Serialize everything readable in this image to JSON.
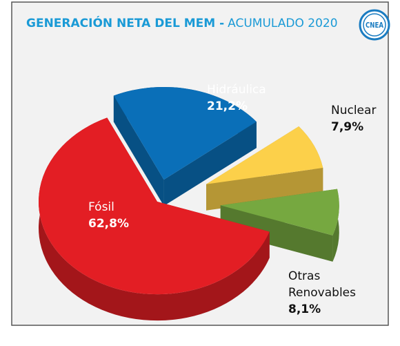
{
  "chart_data": {
    "type": "pie",
    "title": "GENERACIÓN NETA DEL MEM -",
    "subtitle": "ACUMULADO 2020",
    "logo": "CNEA",
    "categories": [
      "Hidráulica",
      "Nuclear",
      "Otras Renovables",
      "Fósil"
    ],
    "values": [
      21.2,
      7.9,
      8.1,
      62.8
    ],
    "value_labels": [
      "21,2%",
      "7,9%",
      "8,1%",
      "62,8%"
    ],
    "colors": [
      "#0a6fb8",
      "#fcd04a",
      "#76a840",
      "#e31e24"
    ]
  }
}
